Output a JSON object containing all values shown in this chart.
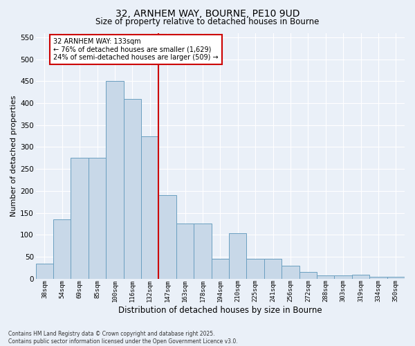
{
  "title1": "32, ARNHEM WAY, BOURNE, PE10 9UD",
  "title2": "Size of property relative to detached houses in Bourne",
  "xlabel": "Distribution of detached houses by size in Bourne",
  "ylabel": "Number of detached properties",
  "categories": [
    "38sqm",
    "54sqm",
    "69sqm",
    "85sqm",
    "100sqm",
    "116sqm",
    "132sqm",
    "147sqm",
    "163sqm",
    "178sqm",
    "194sqm",
    "210sqm",
    "225sqm",
    "241sqm",
    "256sqm",
    "272sqm",
    "288sqm",
    "303sqm",
    "319sqm",
    "334sqm",
    "350sqm"
  ],
  "values": [
    35,
    135,
    275,
    275,
    450,
    410,
    325,
    190,
    125,
    125,
    45,
    103,
    45,
    45,
    30,
    16,
    7,
    7,
    9,
    5,
    5
  ],
  "bar_color": "#c8d8e8",
  "bar_edge_color": "#6a9fc0",
  "vline_color": "#cc0000",
  "annotation_title": "32 ARNHEM WAY: 133sqm",
  "annotation_line1": "← 76% of detached houses are smaller (1,629)",
  "annotation_line2": "24% of semi-detached houses are larger (509) →",
  "annotation_box_edgecolor": "#cc0000",
  "background_color": "#eaf0f8",
  "grid_color": "#ffffff",
  "ylim": [
    0,
    560
  ],
  "yticks": [
    0,
    50,
    100,
    150,
    200,
    250,
    300,
    350,
    400,
    450,
    500,
    550
  ],
  "footer_line1": "Contains HM Land Registry data © Crown copyright and database right 2025.",
  "footer_line2": "Contains public sector information licensed under the Open Government Licence v3.0."
}
